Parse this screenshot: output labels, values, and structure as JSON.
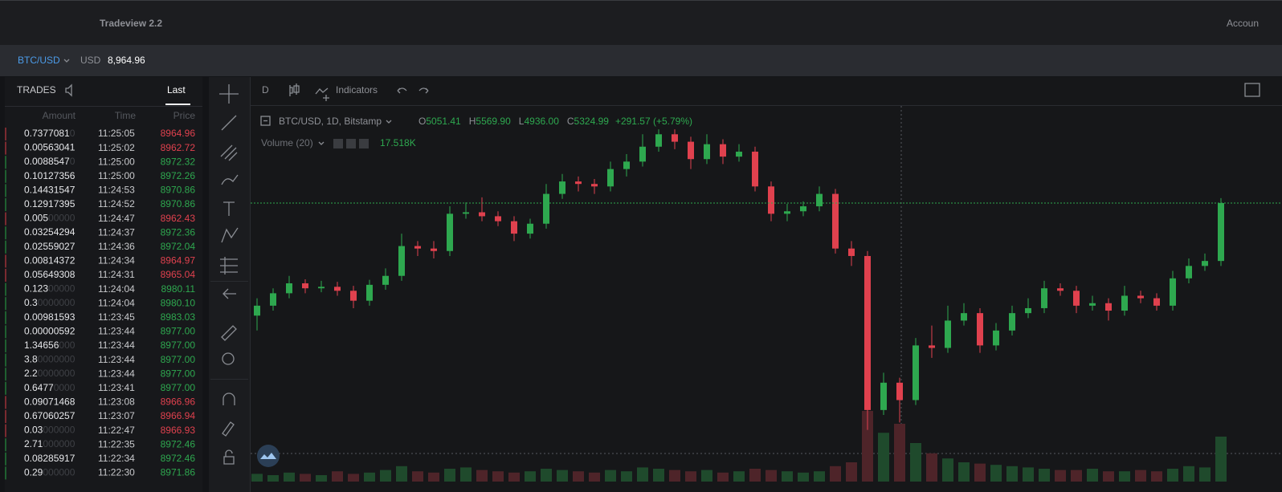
{
  "header": {
    "app_title": "Tradeview 2.2",
    "account": "Accoun"
  },
  "ticker": {
    "pair": "BTC/USD",
    "currency": "USD",
    "price": "8,964.96"
  },
  "trades": {
    "title": "TRADES",
    "tab": "Last",
    "columns": [
      "Amount",
      "Time",
      "Price"
    ],
    "rows": [
      {
        "amount": "0.7377081",
        "pad": "0",
        "time": "11:25:05",
        "price": "8964.96",
        "side": "sell"
      },
      {
        "amount": "0.00563041",
        "time": "11:25:02",
        "price": "8962.72",
        "side": "sell"
      },
      {
        "amount": "0.0088547",
        "pad": "0",
        "time": "11:25:00",
        "price": "8972.32",
        "side": "buy"
      },
      {
        "amount": "0.10127356",
        "time": "11:25:00",
        "price": "8972.26",
        "side": "buy"
      },
      {
        "amount": "0.14431547",
        "time": "11:24:53",
        "price": "8970.86",
        "side": "buy"
      },
      {
        "amount": "0.12917395",
        "time": "11:24:52",
        "price": "8970.86",
        "side": "buy"
      },
      {
        "amount": "0.005",
        "pad": "00000",
        "time": "11:24:47",
        "price": "8962.43",
        "side": "sell"
      },
      {
        "amount": "0.03254294",
        "time": "11:24:37",
        "price": "8972.36",
        "side": "buy"
      },
      {
        "amount": "0.02559027",
        "time": "11:24:36",
        "price": "8972.04",
        "side": "buy"
      },
      {
        "amount": "0.00814372",
        "time": "11:24:34",
        "price": "8964.97",
        "side": "sell"
      },
      {
        "amount": "0.05649308",
        "time": "11:24:31",
        "price": "8965.04",
        "side": "sell"
      },
      {
        "amount": "0.123",
        "pad": "00000",
        "time": "11:24:04",
        "price": "8980.11",
        "side": "buy"
      },
      {
        "amount": "0.3",
        "pad": "0000000",
        "time": "11:24:04",
        "price": "8980.10",
        "side": "buy"
      },
      {
        "amount": "0.00981593",
        "time": "11:23:45",
        "price": "8983.03",
        "side": "buy"
      },
      {
        "amount": "0.00000592",
        "time": "11:23:44",
        "price": "8977.00",
        "side": "buy"
      },
      {
        "amount": "1.34656",
        "pad": "000",
        "time": "11:23:44",
        "price": "8977.00",
        "side": "buy"
      },
      {
        "amount": "3.8",
        "pad": "0000000",
        "time": "11:23:44",
        "price": "8977.00",
        "side": "buy"
      },
      {
        "amount": "2.2",
        "pad": "0000000",
        "time": "11:23:44",
        "price": "8977.00",
        "side": "buy"
      },
      {
        "amount": "0.6477",
        "pad": "0000",
        "time": "11:23:41",
        "price": "8977.00",
        "side": "buy"
      },
      {
        "amount": "0.09071468",
        "time": "11:23:08",
        "price": "8966.96",
        "side": "sell"
      },
      {
        "amount": "0.67060257",
        "time": "11:23:07",
        "price": "8966.94",
        "side": "sell"
      },
      {
        "amount": "0.03",
        "pad": "000000",
        "time": "11:22:47",
        "price": "8966.93",
        "side": "sell"
      },
      {
        "amount": "2.71",
        "pad": "000000",
        "time": "11:22:35",
        "price": "8972.46",
        "side": "buy"
      },
      {
        "amount": "0.08285917",
        "time": "11:22:34",
        "price": "8972.46",
        "side": "buy"
      },
      {
        "amount": "0.29",
        "pad": "000000",
        "time": "11:22:30",
        "price": "8971.86",
        "side": "buy"
      }
    ]
  },
  "chart_toolbar": {
    "interval": "D",
    "indicators": "Indicators"
  },
  "chart_data": {
    "type": "candlestick",
    "title": "BTC/USD, 1D, Bitstamp",
    "legend": [
      {
        "label": "O",
        "value": "5051.41"
      },
      {
        "label": "H",
        "value": "5569.90"
      },
      {
        "label": "L",
        "value": "4936.00"
      },
      {
        "label": "C",
        "value": "5324.99"
      }
    ],
    "change": "+291.57 (+5.79%)",
    "volume_title": "Volume (20)",
    "volume_last": "17.518K",
    "up_color": "#2ea84f",
    "down_color": "#e0414e",
    "ylim": [
      3360,
      10920
    ],
    "open": [
      6700,
      6900,
      7150,
      7350,
      7250,
      7280,
      7200,
      7000,
      7320,
      7500,
      8100,
      8050,
      8000,
      8750,
      8780,
      8700,
      8600,
      8350,
      8550,
      9150,
      9400,
      9350,
      9300,
      9650,
      9800,
      10100,
      10350,
      10200,
      9850,
      10150,
      9900,
      10000,
      9300,
      8750,
      8800,
      8900,
      9150,
      8050,
      7900,
      4800,
      5350,
      5000,
      6100,
      6050,
      6600,
      6750,
      6100,
      6400,
      6750,
      6850,
      7250,
      7200,
      6900,
      6950,
      6800,
      7100,
      7050,
      6900,
      7450,
      7700,
      7800
    ],
    "high": [
      7050,
      7250,
      7500,
      7430,
      7400,
      7380,
      7300,
      7420,
      7650,
      8350,
      8200,
      8200,
      8900,
      8980,
      9080,
      8800,
      8700,
      8650,
      9350,
      9550,
      9500,
      9450,
      9800,
      9950,
      10350,
      10450,
      10450,
      10300,
      10350,
      10250,
      10150,
      10100,
      9400,
      8950,
      9000,
      9300,
      9250,
      8200,
      8000,
      5550,
      5450,
      6250,
      6500,
      6900,
      6950,
      6850,
      6550,
      6900,
      7050,
      7400,
      7350,
      7300,
      7100,
      7050,
      7300,
      7200,
      7150,
      7600,
      7850,
      7950,
      9065
    ],
    "low": [
      6400,
      6800,
      7050,
      7150,
      7170,
      7100,
      6850,
      6900,
      7220,
      7400,
      7900,
      7850,
      7900,
      8650,
      8600,
      8500,
      8200,
      8250,
      8450,
      9050,
      9200,
      9150,
      9200,
      9500,
      9700,
      10000,
      10050,
      9650,
      9750,
      9750,
      9800,
      9200,
      8600,
      8600,
      8700,
      8800,
      7950,
      7700,
      4400,
      4700,
      4550,
      4900,
      5850,
      5950,
      6500,
      5950,
      6000,
      6300,
      6650,
      6750,
      7100,
      6750,
      6800,
      6600,
      6700,
      6950,
      6800,
      6800,
      7350,
      7600,
      7700
    ],
    "close": [
      6900,
      7150,
      7350,
      7250,
      7280,
      7200,
      7000,
      7320,
      7500,
      8100,
      8050,
      8000,
      8750,
      8780,
      8700,
      8600,
      8350,
      8550,
      9150,
      9400,
      9350,
      9300,
      9650,
      9800,
      10100,
      10350,
      10200,
      9850,
      10150,
      9900,
      10000,
      9300,
      8750,
      8800,
      8900,
      9150,
      8050,
      7900,
      4800,
      5350,
      5000,
      6100,
      6050,
      6600,
      6750,
      6100,
      6400,
      6750,
      6850,
      7250,
      7200,
      6900,
      6950,
      6800,
      7100,
      7050,
      6900,
      7450,
      7700,
      7800,
      8965
    ],
    "volume": [
      6,
      5,
      7,
      6,
      5,
      8,
      6,
      7,
      9,
      12,
      8,
      7,
      10,
      11,
      9,
      8,
      7,
      8,
      10,
      9,
      8,
      7,
      9,
      8,
      11,
      10,
      9,
      8,
      9,
      7,
      8,
      10,
      9,
      8,
      7,
      8,
      12,
      15,
      55,
      38,
      45,
      30,
      22,
      18,
      15,
      14,
      13,
      12,
      11,
      10,
      9,
      9,
      10,
      8,
      8,
      9,
      8,
      10,
      12,
      11,
      35
    ]
  }
}
